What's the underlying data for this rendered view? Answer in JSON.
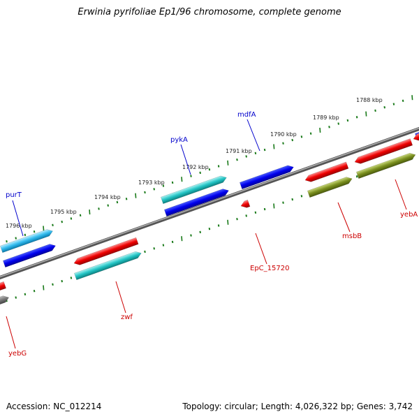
{
  "title": "Erwinia pyrifoliae Ep1/96 chromosome, complete genome",
  "footer": {
    "accession": "Accession: NC_012214",
    "summary": "Topology: circular; Length: 4,026,322 bp; Genes: 3,742"
  },
  "colors": {
    "forward_label": "#0000cc",
    "reverse_label": "#cc0000",
    "tick": "#1a7a1a",
    "backbone": "#808080"
  },
  "scale_ticks": [
    {
      "label": "1796 kbp"
    },
    {
      "label": "1795 kbp"
    },
    {
      "label": "1794 kbp"
    },
    {
      "label": "1793 kbp"
    },
    {
      "label": "1792 kbp"
    },
    {
      "label": "1791 kbp"
    },
    {
      "label": "1790 kbp"
    },
    {
      "label": "1789 kbp"
    },
    {
      "label": "1788 kbp"
    }
  ],
  "gene_labels": [
    {
      "name": "purT",
      "strand": "forward"
    },
    {
      "name": "pykA",
      "strand": "forward"
    },
    {
      "name": "mdfA",
      "strand": "forward"
    },
    {
      "name": "zwf",
      "strand": "reverse"
    },
    {
      "name": "EpC_15720",
      "strand": "reverse"
    },
    {
      "name": "msbB",
      "strand": "reverse"
    },
    {
      "name": "yebA",
      "strand": "reverse"
    },
    {
      "name": "yebG",
      "strand": "reverse"
    }
  ]
}
